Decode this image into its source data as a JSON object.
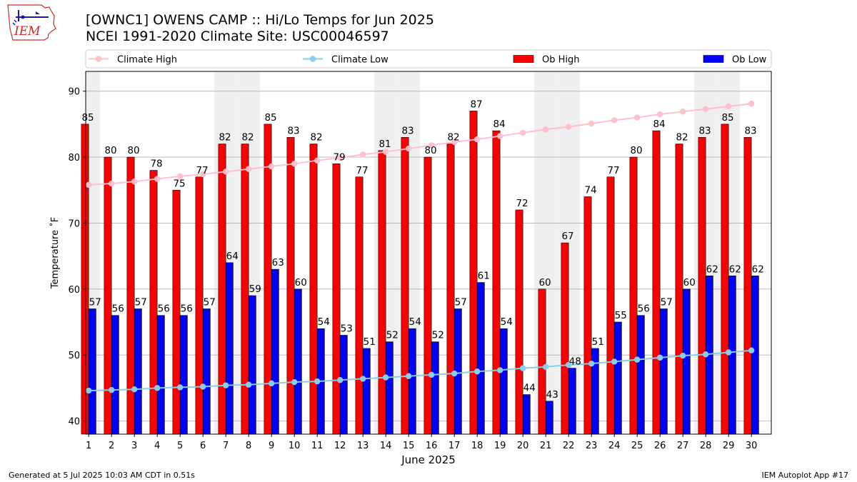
{
  "header": {
    "title": "[OWNC1] OWENS CAMP :: Hi/Lo Temps for Jun 2025",
    "subtitle": "NCEI 1991-2020 Climate Site: USC00046597",
    "logo_text": "IEM"
  },
  "footer": {
    "generated": "Generated at 5 Jul 2025 10:03 AM CDT in 0.51s",
    "app": "IEM Autoplot App #17"
  },
  "chart_data": {
    "type": "bar",
    "xlabel": "June 2025",
    "ylabel": "Temperature ˚F",
    "ylim": [
      38,
      93
    ],
    "yticks": [
      40,
      50,
      60,
      70,
      80,
      90
    ],
    "grid": true,
    "legend_position": "top",
    "categories": [
      "1",
      "2",
      "3",
      "4",
      "5",
      "6",
      "7",
      "8",
      "9",
      "10",
      "11",
      "12",
      "13",
      "14",
      "15",
      "16",
      "17",
      "18",
      "19",
      "20",
      "21",
      "22",
      "23",
      "24",
      "25",
      "26",
      "27",
      "28",
      "29",
      "30"
    ],
    "weekend_days": [
      1,
      7,
      8,
      14,
      15,
      21,
      22,
      28,
      29
    ],
    "series": [
      {
        "name": "Climate High",
        "kind": "line",
        "color": "#ffc0cb",
        "values": [
          75.8,
          76.0,
          76.3,
          76.7,
          77.1,
          77.4,
          77.8,
          78.2,
          78.6,
          79.0,
          79.5,
          79.9,
          80.4,
          80.8,
          81.3,
          81.8,
          82.3,
          82.7,
          83.2,
          83.7,
          84.2,
          84.6,
          85.1,
          85.6,
          86.0,
          86.5,
          86.9,
          87.3,
          87.7,
          88.1
        ]
      },
      {
        "name": "Climate Low",
        "kind": "line",
        "color": "#87ceeb",
        "values": [
          44.6,
          44.7,
          44.8,
          45.0,
          45.1,
          45.2,
          45.4,
          45.5,
          45.7,
          45.9,
          46.0,
          46.2,
          46.4,
          46.6,
          46.8,
          47.0,
          47.2,
          47.5,
          47.7,
          48.0,
          48.2,
          48.5,
          48.7,
          49.0,
          49.3,
          49.6,
          49.9,
          50.1,
          50.4,
          50.7
        ]
      },
      {
        "name": "Ob High",
        "kind": "bar",
        "color": "#ff0000",
        "values": [
          85,
          80,
          80,
          78,
          75,
          77,
          82,
          82,
          85,
          83,
          82,
          79,
          77,
          81,
          83,
          80,
          82,
          87,
          84,
          72,
          60,
          67,
          74,
          77,
          80,
          84,
          82,
          83,
          85,
          83
        ]
      },
      {
        "name": "Ob Low",
        "kind": "bar",
        "color": "#0000ff",
        "values": [
          57,
          56,
          57,
          56,
          56,
          57,
          64,
          59,
          63,
          60,
          54,
          53,
          51,
          52,
          54,
          52,
          57,
          61,
          54,
          44,
          43,
          48,
          51,
          55,
          56,
          57,
          60,
          62,
          62,
          62
        ]
      }
    ]
  }
}
